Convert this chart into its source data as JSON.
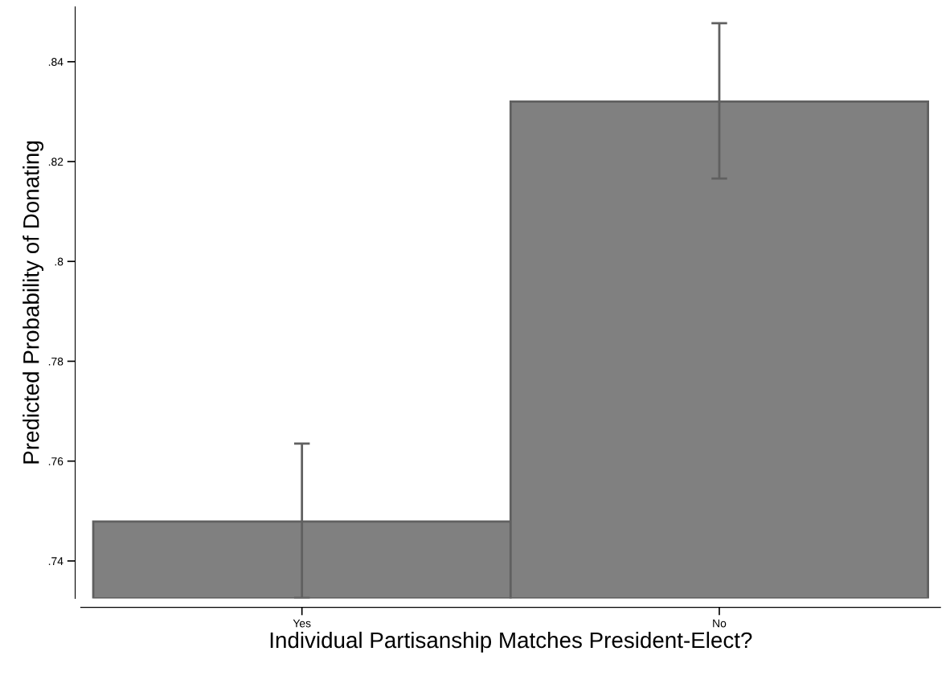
{
  "chart_data": {
    "type": "bar",
    "xlabel": "Individual Partisanship Matches President-Elect?",
    "ylabel": "Predicted Probability of Donating",
    "categories": [
      "Yes",
      "No"
    ],
    "values": [
      0.7479,
      0.832
    ],
    "errors": [
      [
        0.7326,
        0.7635
      ],
      [
        0.8166,
        0.8477
      ]
    ],
    "color": "#808080",
    "ylim": [
      0.7325,
      0.851
    ],
    "yticks": [
      {
        "value": 0.74,
        "label": ".74"
      },
      {
        "value": 0.76,
        "label": ".76"
      },
      {
        "value": 0.78,
        "label": ".78"
      },
      {
        "value": 0.8,
        "label": ".8"
      },
      {
        "value": 0.82,
        "label": ".82"
      },
      {
        "value": 0.84,
        "label": ".84"
      }
    ],
    "grid": false,
    "legend": false
  }
}
